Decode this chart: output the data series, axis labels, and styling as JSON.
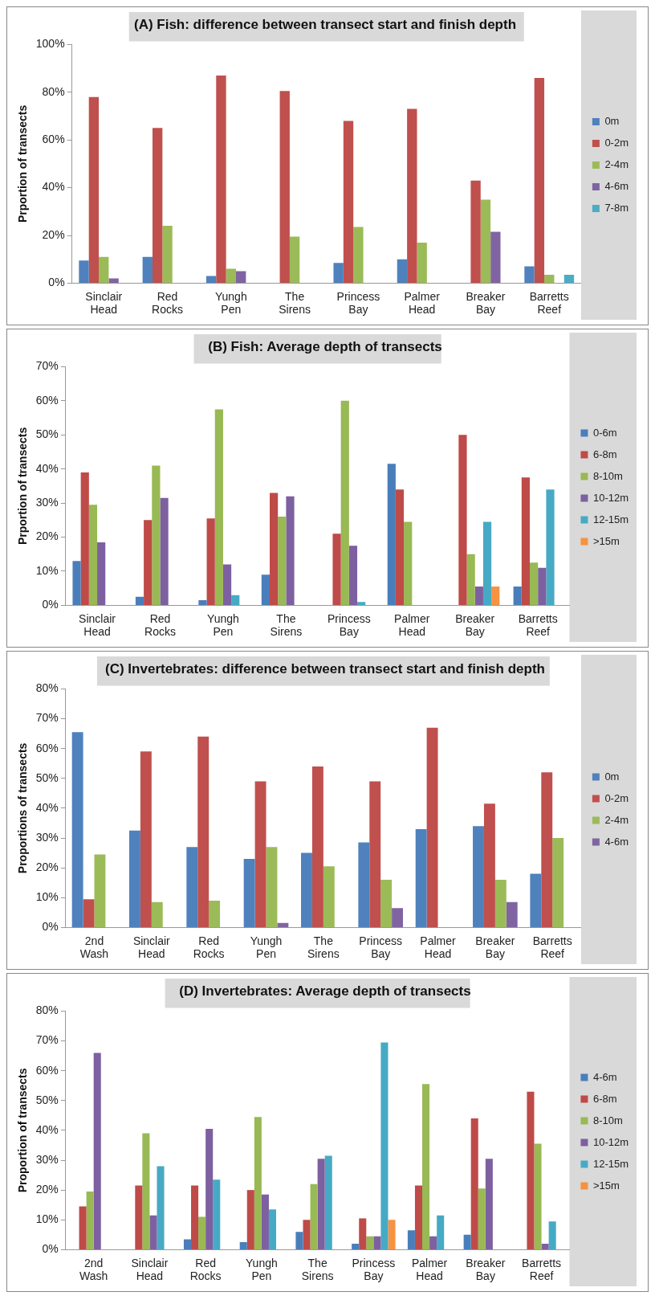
{
  "chart_data": [
    {
      "type": "bar",
      "title": "(A) Fish: difference between transect start and finish depth",
      "ylabel": "Prportion of transects",
      "legend": "right",
      "categories": [
        "Sinclair Head",
        "Red Rocks",
        "Yungh Pen",
        "The Sirens",
        "Princess Bay",
        "Palmer Head",
        "Breaker Bay",
        "Barretts Reef"
      ],
      "ylim": [
        0,
        100
      ],
      "yticks": [
        {
          "value": 0,
          "label": "0%"
        },
        {
          "value": 20,
          "label": "20%"
        },
        {
          "value": 40,
          "label": "40%"
        },
        {
          "value": 60,
          "label": "60%"
        },
        {
          "value": 80,
          "label": "80%"
        },
        {
          "value": 100,
          "label": "100%"
        }
      ],
      "series": [
        {
          "name": "0m",
          "color": "#4f81bd",
          "values": [
            9.5,
            11,
            3,
            null,
            8.5,
            10,
            null,
            7
          ]
        },
        {
          "name": "0-2m",
          "color": "#c0504d",
          "values": [
            78,
            65,
            87,
            80.5,
            68,
            73,
            43,
            86
          ]
        },
        {
          "name": "2-4m",
          "color": "#9bbb59",
          "values": [
            11,
            24,
            6,
            19.5,
            23.5,
            17,
            35,
            3.5
          ]
        },
        {
          "name": "4-6m",
          "color": "#8064a2",
          "values": [
            2,
            null,
            5,
            null,
            null,
            null,
            21.5,
            null
          ]
        },
        {
          "name": "7-8m",
          "color": "#4bacc6",
          "values": [
            null,
            null,
            null,
            null,
            null,
            null,
            null,
            3.5
          ]
        }
      ]
    },
    {
      "type": "bar",
      "title": "(B) Fish: Average depth of transects",
      "ylabel": "Prportion of transects",
      "legend": "right",
      "categories": [
        "Sinclair Head",
        "Red Rocks",
        "Yungh Pen",
        "The Sirens",
        "Princess Bay",
        "Palmer Head",
        "Breaker Bay",
        "Barretts Reef"
      ],
      "ylim": [
        0,
        70
      ],
      "yticks": [
        {
          "value": 0,
          "label": "0%"
        },
        {
          "value": 10,
          "label": "10%"
        },
        {
          "value": 20,
          "label": "20%"
        },
        {
          "value": 30,
          "label": "30%"
        },
        {
          "value": 40,
          "label": "40%"
        },
        {
          "value": 50,
          "label": "50%"
        },
        {
          "value": 60,
          "label": "60%"
        },
        {
          "value": 70,
          "label": "70%"
        }
      ],
      "series": [
        {
          "name": "0-6m",
          "color": "#4a7ebb",
          "values": [
            13,
            2.5,
            1.5,
            9,
            null,
            41.5,
            null,
            5.5
          ]
        },
        {
          "name": "6-8m",
          "color": "#be4b48",
          "values": [
            39,
            25,
            25.5,
            33,
            21,
            34,
            50,
            37.5
          ]
        },
        {
          "name": "8-10m",
          "color": "#98b954",
          "values": [
            29.5,
            41,
            57.5,
            26,
            60,
            24.5,
            15,
            12.5
          ]
        },
        {
          "name": "10-12m",
          "color": "#7d60a0",
          "values": [
            18.5,
            31.5,
            12,
            32,
            17.5,
            null,
            5.5,
            11
          ]
        },
        {
          "name": "12-15m",
          "color": "#46aac5",
          "values": [
            null,
            null,
            3,
            null,
            1,
            null,
            24.5,
            34
          ]
        },
        {
          "name": ">15m",
          "color": "#f69240",
          "values": [
            null,
            null,
            null,
            null,
            null,
            null,
            5.5,
            null
          ]
        }
      ]
    },
    {
      "type": "bar",
      "title": "(C) Invertebrates: difference between transect start and finish depth",
      "ylabel": "Proportions of transects",
      "legend": "right",
      "categories": [
        "2nd Wash",
        "Sinclair Head",
        "Red Rocks",
        "Yungh Pen",
        "The Sirens",
        "Princess Bay",
        "Palmer Head",
        "Breaker Bay",
        "Barretts Reef"
      ],
      "ylim": [
        0,
        80
      ],
      "yticks": [
        {
          "value": 0,
          "label": "0%"
        },
        {
          "value": 10,
          "label": "10%"
        },
        {
          "value": 20,
          "label": "20%"
        },
        {
          "value": 30,
          "label": "30%"
        },
        {
          "value": 40,
          "label": "40%"
        },
        {
          "value": 50,
          "label": "50%"
        },
        {
          "value": 60,
          "label": "60%"
        },
        {
          "value": 70,
          "label": "70%"
        },
        {
          "value": 80,
          "label": "80%"
        }
      ],
      "series": [
        {
          "name": "0m",
          "color": "#4f81bd",
          "values": [
            65.5,
            32.5,
            27,
            23,
            25,
            28.5,
            33,
            34,
            18
          ]
        },
        {
          "name": "0-2m",
          "color": "#c0504d",
          "values": [
            9.5,
            59,
            64,
            49,
            54,
            49,
            67,
            41.5,
            52
          ]
        },
        {
          "name": "2-4m",
          "color": "#9bbb59",
          "values": [
            24.5,
            8.5,
            9,
            27,
            20.5,
            16,
            null,
            16,
            30
          ]
        },
        {
          "name": "4-6m",
          "color": "#8064a2",
          "values": [
            null,
            null,
            null,
            1.5,
            null,
            6.5,
            null,
            8.5,
            null
          ]
        }
      ]
    },
    {
      "type": "bar",
      "title": "(D) Invertebrates: Average depth of transects",
      "ylabel": "Proportion of transects",
      "legend": "right",
      "categories": [
        "2nd Wash",
        "Sinclair Head",
        "Red Rocks",
        "Yungh Pen",
        "The Sirens",
        "Princess Bay",
        "Palmer Head",
        "Breaker Bay",
        "Barretts Reef"
      ],
      "ylim": [
        0,
        80
      ],
      "yticks": [
        {
          "value": 0,
          "label": "0%"
        },
        {
          "value": 10,
          "label": "10%"
        },
        {
          "value": 20,
          "label": "20%"
        },
        {
          "value": 30,
          "label": "30%"
        },
        {
          "value": 40,
          "label": "40%"
        },
        {
          "value": 50,
          "label": "50%"
        },
        {
          "value": 60,
          "label": "60%"
        },
        {
          "value": 70,
          "label": "70%"
        },
        {
          "value": 80,
          "label": "80%"
        }
      ],
      "series": [
        {
          "name": "4-6m",
          "color": "#4a7ebb",
          "values": [
            null,
            null,
            3.5,
            2.5,
            6,
            2,
            6.5,
            5,
            null
          ]
        },
        {
          "name": "6-8m",
          "color": "#be4b48",
          "values": [
            14.5,
            21.5,
            21.5,
            20,
            10,
            10.5,
            21.5,
            44,
            53
          ]
        },
        {
          "name": "8-10m",
          "color": "#98b954",
          "values": [
            19.5,
            39,
            11,
            44.5,
            22,
            4.5,
            55.5,
            20.5,
            35.5
          ]
        },
        {
          "name": "10-12m",
          "color": "#7d60a0",
          "values": [
            66,
            11.5,
            40.5,
            18.5,
            30.5,
            4.5,
            4.5,
            30.5,
            2
          ]
        },
        {
          "name": "12-15m",
          "color": "#46aac5",
          "values": [
            null,
            28,
            23.5,
            13.5,
            31.5,
            69.5,
            11.5,
            null,
            9.5
          ]
        },
        {
          "name": ">15m",
          "color": "#f69240",
          "values": [
            null,
            null,
            null,
            null,
            null,
            10,
            null,
            null,
            null
          ]
        }
      ]
    }
  ]
}
